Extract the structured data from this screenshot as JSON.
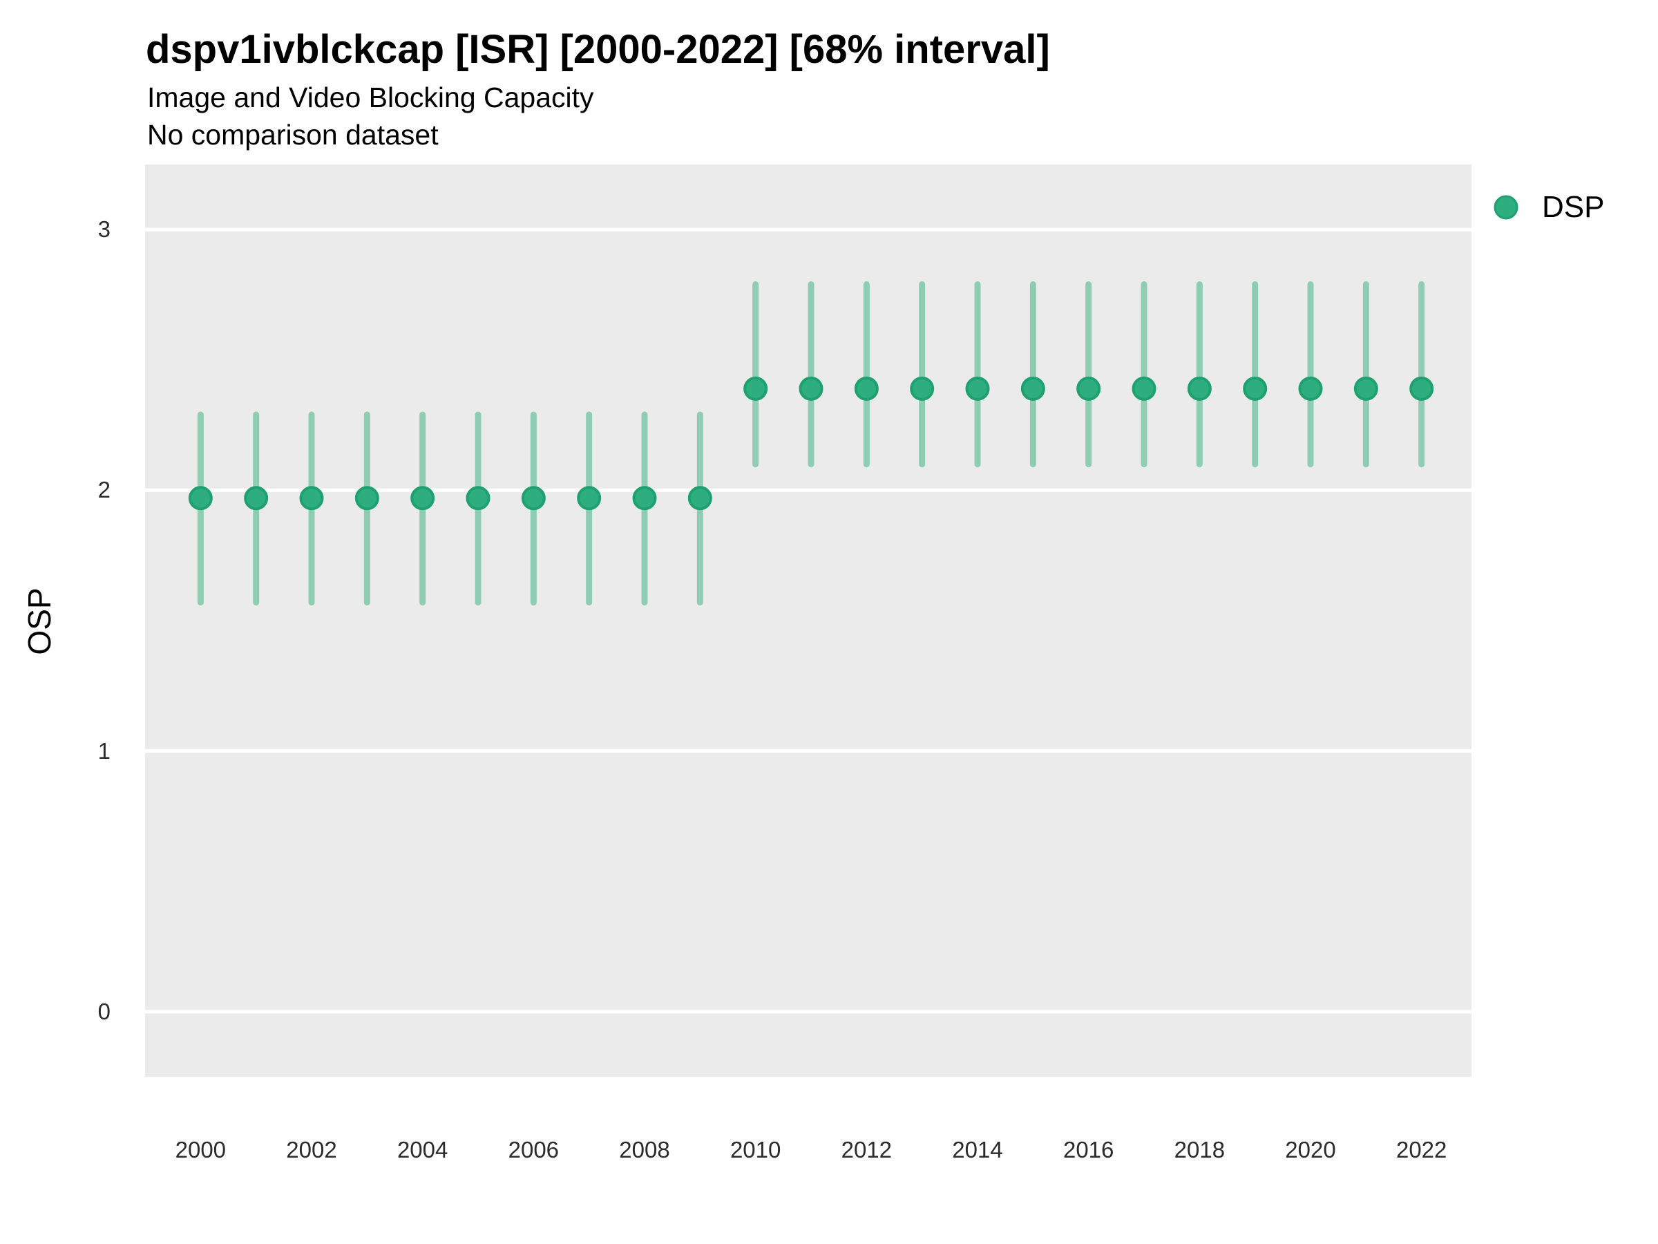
{
  "header": {
    "title": "dspv1ivblckcap [ISR] [2000-2022] [68% interval]",
    "subtitle": "Image and Video Blocking Capacity",
    "note": "No comparison dataset"
  },
  "legend": {
    "position": "right-top-outside",
    "items": [
      {
        "label": "DSP",
        "color": "#2EAD7E"
      }
    ]
  },
  "colors": {
    "point_fill": "#2EAD7E",
    "point_edge": "#1FA070",
    "interval_line": "#8FCDB3",
    "panel_background": "#EBEBEB",
    "gridline": "#FFFFFF",
    "title_text": "#000000",
    "tick_text": "#2b2b2b"
  },
  "chart_data": {
    "type": "scatter",
    "variant": "pointrange",
    "title": "dspv1ivblckcap [ISR] [2000-2022] [68% interval]",
    "subtitle": "Image and Video Blocking Capacity",
    "annotation": "No comparison dataset",
    "xlabel": "",
    "ylabel": "OSP",
    "interval_label": "68% interval",
    "grid": "horizontal major gridlines only, white on gray panel",
    "legend_position": "right-top-outside",
    "x_ticks": [
      2000,
      2002,
      2004,
      2006,
      2008,
      2010,
      2012,
      2014,
      2016,
      2018,
      2020,
      2022
    ],
    "y_ticks": [
      0,
      1,
      2,
      3
    ],
    "xlim": [
      1999.0,
      2022.9
    ],
    "ylim": [
      -0.25,
      3.25
    ],
    "series": [
      {
        "name": "DSP",
        "color": "#2EAD7E",
        "points": [
          {
            "x": 2000,
            "y": 1.97,
            "lo": 1.57,
            "hi": 2.29
          },
          {
            "x": 2001,
            "y": 1.97,
            "lo": 1.57,
            "hi": 2.29
          },
          {
            "x": 2002,
            "y": 1.97,
            "lo": 1.57,
            "hi": 2.29
          },
          {
            "x": 2003,
            "y": 1.97,
            "lo": 1.57,
            "hi": 2.29
          },
          {
            "x": 2004,
            "y": 1.97,
            "lo": 1.57,
            "hi": 2.29
          },
          {
            "x": 2005,
            "y": 1.97,
            "lo": 1.57,
            "hi": 2.29
          },
          {
            "x": 2006,
            "y": 1.97,
            "lo": 1.57,
            "hi": 2.29
          },
          {
            "x": 2007,
            "y": 1.97,
            "lo": 1.57,
            "hi": 2.29
          },
          {
            "x": 2008,
            "y": 1.97,
            "lo": 1.57,
            "hi": 2.29
          },
          {
            "x": 2009,
            "y": 1.97,
            "lo": 1.57,
            "hi": 2.29
          },
          {
            "x": 2010,
            "y": 2.39,
            "lo": 2.1,
            "hi": 2.79
          },
          {
            "x": 2011,
            "y": 2.39,
            "lo": 2.1,
            "hi": 2.79
          },
          {
            "x": 2012,
            "y": 2.39,
            "lo": 2.1,
            "hi": 2.79
          },
          {
            "x": 2013,
            "y": 2.39,
            "lo": 2.1,
            "hi": 2.79
          },
          {
            "x": 2014,
            "y": 2.39,
            "lo": 2.1,
            "hi": 2.79
          },
          {
            "x": 2015,
            "y": 2.39,
            "lo": 2.1,
            "hi": 2.79
          },
          {
            "x": 2016,
            "y": 2.39,
            "lo": 2.1,
            "hi": 2.79
          },
          {
            "x": 2017,
            "y": 2.39,
            "lo": 2.1,
            "hi": 2.79
          },
          {
            "x": 2018,
            "y": 2.39,
            "lo": 2.1,
            "hi": 2.79
          },
          {
            "x": 2019,
            "y": 2.39,
            "lo": 2.1,
            "hi": 2.79
          },
          {
            "x": 2020,
            "y": 2.39,
            "lo": 2.1,
            "hi": 2.79
          },
          {
            "x": 2021,
            "y": 2.39,
            "lo": 2.1,
            "hi": 2.79
          },
          {
            "x": 2022,
            "y": 2.39,
            "lo": 2.1,
            "hi": 2.79
          }
        ]
      }
    ]
  }
}
